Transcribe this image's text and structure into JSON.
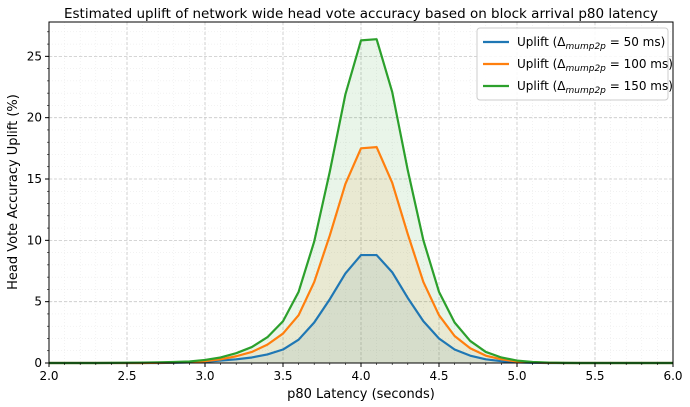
{
  "chart_data": {
    "type": "line",
    "title": "Estimated uplift of network wide head vote accuracy based on block arrival p80 latency",
    "xlabel": "p80 Latency (seconds)",
    "ylabel": "Head Vote Accuracy Uplift (%)",
    "xlim": [
      2.0,
      6.0
    ],
    "ylim": [
      0,
      27.8
    ],
    "xticks": [
      2.0,
      2.5,
      3.0,
      3.5,
      4.0,
      4.5,
      5.0,
      5.5,
      6.0
    ],
    "xtick_labels": [
      "2.0",
      "2.5",
      "3.0",
      "3.5",
      "4.0",
      "4.5",
      "5.0",
      "5.5",
      "6.0"
    ],
    "yticks": [
      0,
      5,
      10,
      15,
      20,
      25
    ],
    "ytick_labels": [
      "0",
      "5",
      "10",
      "15",
      "20",
      "25"
    ],
    "grid": true,
    "legend_position": "top-right",
    "x": [
      2.0,
      2.1,
      2.2,
      2.3,
      2.4,
      2.5,
      2.6,
      2.7,
      2.8,
      2.9,
      3.0,
      3.1,
      3.2,
      3.3,
      3.4,
      3.5,
      3.6,
      3.7,
      3.8,
      3.9,
      4.0,
      4.1,
      4.2,
      4.3,
      4.4,
      4.5,
      4.6,
      4.7,
      4.8,
      4.9,
      5.0,
      5.1,
      5.2,
      5.3,
      5.4,
      5.5,
      5.6,
      5.7,
      5.8,
      5.9,
      6.0
    ],
    "series": [
      {
        "name_prefix": "Uplift (",
        "name_symbol": "Δ",
        "name_sub": "mump2p",
        "name_suffix": " = 50 ms)",
        "color": "#1f77b4",
        "fill": "#1f77b4",
        "values": [
          0,
          0,
          0,
          0,
          0,
          0,
          0,
          0,
          0.02,
          0.05,
          0.1,
          0.2,
          0.3,
          0.45,
          0.7,
          1.1,
          1.9,
          3.3,
          5.2,
          7.3,
          8.8,
          8.8,
          7.4,
          5.3,
          3.4,
          2.0,
          1.1,
          0.6,
          0.3,
          0.15,
          0.05,
          0.02,
          0,
          0,
          0,
          0,
          0,
          0,
          0,
          0,
          0
        ]
      },
      {
        "name_prefix": "Uplift (",
        "name_symbol": "Δ",
        "name_sub": "mump2p",
        "name_suffix": " = 100 ms)",
        "color": "#ff7f0e",
        "fill": "#ff7f0e",
        "values": [
          0,
          0,
          0,
          0,
          0,
          0,
          0,
          0.02,
          0.04,
          0.08,
          0.15,
          0.3,
          0.55,
          0.9,
          1.5,
          2.4,
          3.9,
          6.6,
          10.4,
          14.6,
          17.5,
          17.6,
          14.7,
          10.5,
          6.6,
          3.9,
          2.2,
          1.2,
          0.6,
          0.3,
          0.12,
          0.05,
          0.02,
          0,
          0,
          0,
          0,
          0,
          0,
          0,
          0
        ]
      },
      {
        "name_prefix": "Uplift (",
        "name_symbol": "Δ",
        "name_sub": "mump2p",
        "name_suffix": " = 150 ms)",
        "color": "#2ca02c",
        "fill": "#2ca02c",
        "values": [
          0,
          0,
          0,
          0,
          0.01,
          0.02,
          0.03,
          0.05,
          0.08,
          0.12,
          0.25,
          0.45,
          0.8,
          1.3,
          2.1,
          3.4,
          5.8,
          9.9,
          15.6,
          21.9,
          26.3,
          26.4,
          22.1,
          15.7,
          10.0,
          5.8,
          3.3,
          1.8,
          0.9,
          0.45,
          0.2,
          0.08,
          0.03,
          0.01,
          0,
          0,
          0,
          0,
          0,
          0,
          0
        ]
      }
    ]
  }
}
